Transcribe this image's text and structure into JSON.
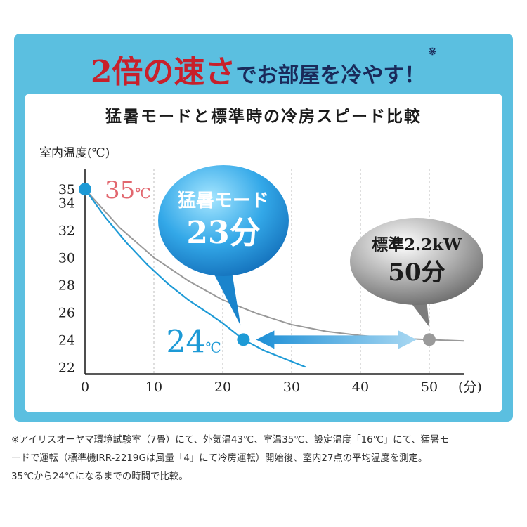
{
  "headline": {
    "emphasis": "2倍の速さ",
    "rest": "でお部屋を冷やす！",
    "mark": "※"
  },
  "panel_title": "猛暑モードと標準時の冷房スピード比較",
  "chart_data": {
    "type": "line",
    "ylabel": "室内温度(℃)",
    "xlabel": "(分)",
    "xlim": [
      0,
      55
    ],
    "ylim": [
      21.5,
      36.5
    ],
    "x_ticks": [
      0,
      10,
      20,
      30,
      40,
      50
    ],
    "y_ticks": [
      22,
      24,
      26,
      28,
      30,
      32,
      34,
      35
    ],
    "grid": "vertical dashed at x ticks",
    "series": [
      {
        "name": "猛暑モード",
        "color": "#1d9ad6",
        "x": [
          0,
          3,
          6,
          9,
          12,
          15,
          18,
          20,
          23,
          26,
          29,
          32
        ],
        "y": [
          35.0,
          32.9,
          31.1,
          29.5,
          28.1,
          26.9,
          25.9,
          25.2,
          24.0,
          23.2,
          22.6,
          22.0
        ]
      },
      {
        "name": "標準2.2kW",
        "color": "#999999",
        "x": [
          0,
          5,
          10,
          15,
          20,
          25,
          30,
          35,
          40,
          45,
          50,
          55
        ],
        "y": [
          35.0,
          32.2,
          30.0,
          28.3,
          26.9,
          25.9,
          25.1,
          24.6,
          24.3,
          24.1,
          24.0,
          23.9
        ]
      }
    ],
    "annotations": {
      "start": {
        "value": "35",
        "unit": "℃",
        "x": 0,
        "y": 35
      },
      "end": {
        "value": "24",
        "unit": "℃"
      },
      "fast": {
        "title": "猛暑モード",
        "time": "23分",
        "x": 23,
        "y": 24
      },
      "standard": {
        "title": "標準2.2kW",
        "time": "50分",
        "x": 50,
        "y": 24
      }
    }
  },
  "colors": {
    "frame": "#5bbfe0",
    "accent_red": "#c8202b",
    "headline_navy": "#1a2a5a",
    "fast_line": "#1d9ad6",
    "std_line": "#999999"
  },
  "footnote": [
    "※アイリスオーヤマ環境試験室（7畳）にて、外気温43℃、室温35℃、設定温度「16℃」にて、猛暑モ",
    "ードで運転（標準機IRR-2219Gは風量「4」にて冷房運転）開始後、室内27点の平均温度を測定。",
    "35℃から24℃になるまでの時間で比較。"
  ]
}
